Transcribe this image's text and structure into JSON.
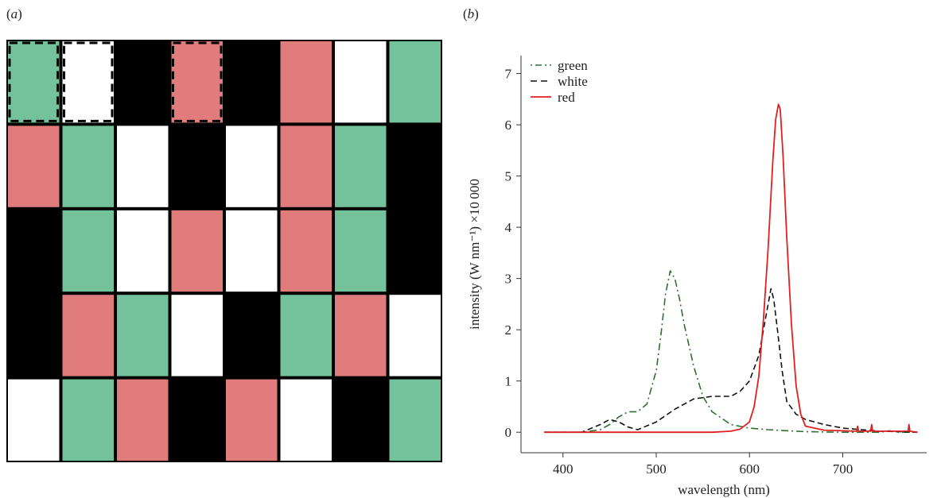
{
  "panel_labels": {
    "a": "a",
    "b": "b"
  },
  "colors": {
    "green": "#74c29c",
    "red": "#e07c7c",
    "white": "#ffffff",
    "black": "#000000",
    "line_green": "#2f6f2f",
    "line_white": "#111111",
    "line_red": "#e02020"
  },
  "grid": {
    "rows": [
      [
        "G",
        "W",
        "K",
        "R",
        "K",
        "R",
        "W",
        "G"
      ],
      [
        "R",
        "G",
        "W",
        "K",
        "W",
        "R",
        "G",
        "K"
      ],
      [
        "K",
        "G",
        "W",
        "R",
        "W",
        "R",
        "G",
        "K"
      ],
      [
        "K",
        "R",
        "G",
        "W",
        "K",
        "G",
        "R",
        "W"
      ],
      [
        "W",
        "G",
        "R",
        "K",
        "R",
        "W",
        "K",
        "G"
      ]
    ],
    "dashed_cells": [
      [
        0,
        0
      ],
      [
        0,
        1
      ],
      [
        0,
        3
      ]
    ]
  },
  "chart_data": {
    "type": "line",
    "title": "",
    "xlabel": "wavelength (nm)",
    "ylabel": "intensity (W nm⁻¹) ×10 000",
    "xlim": [
      355,
      790
    ],
    "ylim": [
      -0.4,
      7.35
    ],
    "xticks": [
      400,
      500,
      600,
      700
    ],
    "yticks": [
      0,
      1,
      2,
      3,
      4,
      5,
      6,
      7
    ],
    "legend_position": "top-left",
    "series": [
      {
        "name": "green",
        "style": "dashdot",
        "x": [
          380,
          420,
          440,
          450,
          460,
          470,
          480,
          490,
          500,
          505,
          510,
          515,
          520,
          525,
          530,
          540,
          550,
          560,
          580,
          600,
          620,
          640,
          660,
          700,
          740,
          750,
          760,
          780
        ],
        "y": [
          0,
          0,
          0.05,
          0.15,
          0.3,
          0.4,
          0.4,
          0.55,
          1.2,
          1.9,
          2.7,
          3.15,
          3.0,
          2.6,
          2.1,
          1.3,
          0.7,
          0.4,
          0.15,
          0.08,
          0.05,
          0.03,
          0.01,
          0,
          0,
          0.03,
          0,
          0
        ]
      },
      {
        "name": "white",
        "style": "dashed",
        "x": [
          380,
          420,
          440,
          450,
          460,
          470,
          480,
          500,
          520,
          540,
          560,
          580,
          590,
          600,
          610,
          615,
          620,
          623,
          626,
          630,
          635,
          640,
          650,
          660,
          680,
          700,
          740,
          780
        ],
        "y": [
          0,
          0,
          0.15,
          0.25,
          0.2,
          0.1,
          0.05,
          0.2,
          0.45,
          0.65,
          0.7,
          0.7,
          0.8,
          1.0,
          1.5,
          2.0,
          2.5,
          2.8,
          2.6,
          2.0,
          1.2,
          0.6,
          0.35,
          0.25,
          0.15,
          0.08,
          0.02,
          0
        ]
      },
      {
        "name": "red",
        "style": "solid",
        "x": [
          380,
          560,
          580,
          590,
          600,
          605,
          610,
          615,
          620,
          625,
          628,
          631,
          633,
          636,
          640,
          645,
          650,
          655,
          660,
          680,
          715,
          716,
          717,
          730,
          731,
          732,
          760,
          770,
          771,
          772,
          780
        ],
        "y": [
          0,
          0,
          0.02,
          0.06,
          0.2,
          0.5,
          1.1,
          2.2,
          3.6,
          5.3,
          6.1,
          6.4,
          6.3,
          5.4,
          3.8,
          2.1,
          0.9,
          0.35,
          0.12,
          0.04,
          0.02,
          0.12,
          0.02,
          0.02,
          0.15,
          0.02,
          0.02,
          0.02,
          0.15,
          0.02,
          0
        ]
      }
    ]
  }
}
